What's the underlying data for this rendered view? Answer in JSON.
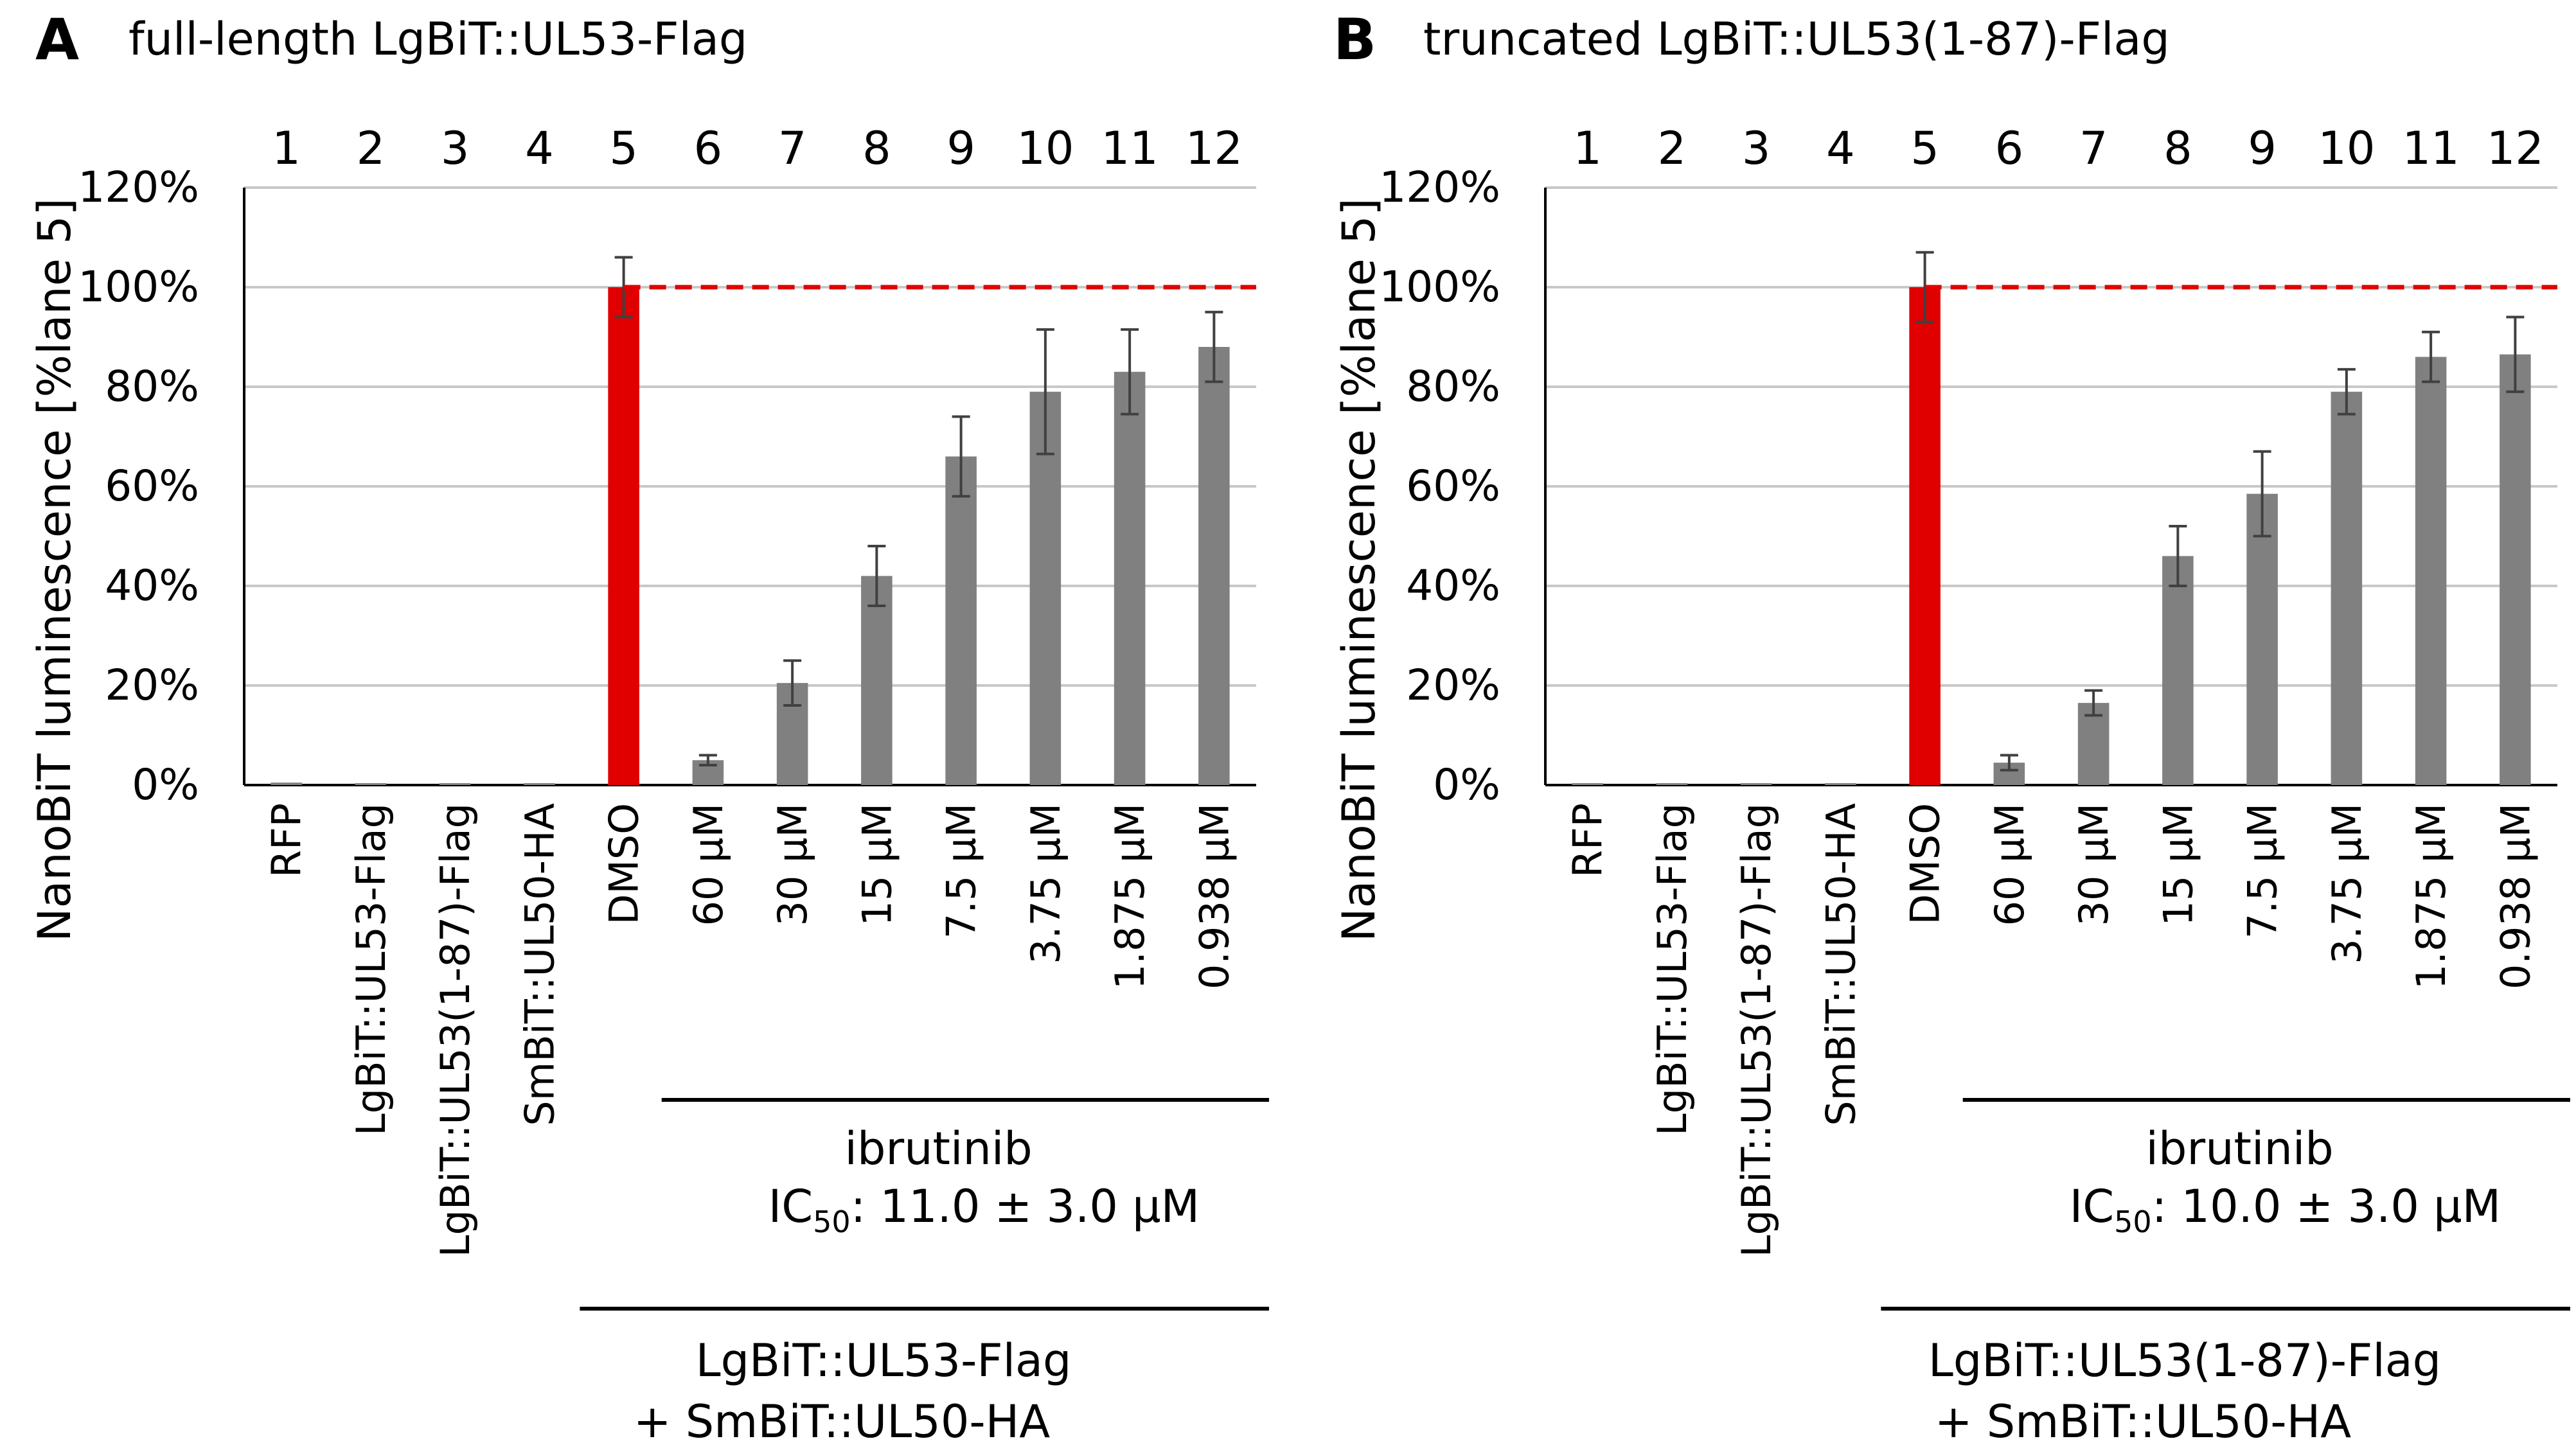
{
  "chart_data": [
    {
      "type": "bar",
      "panel": "A",
      "title": "full-length LgBiT::UL53-Flag",
      "ylabel": "NanoBiT luminescence [%lane 5]",
      "lane_numbers": [
        "1",
        "2",
        "3",
        "4",
        "5",
        "6",
        "7",
        "8",
        "9",
        "10",
        "11",
        "12"
      ],
      "categories": [
        "RFP",
        "LgBiT::UL53-Flag",
        "LgBiT::UL53(1-87)-Flag",
        "SmBiT::UL50-HA",
        "DMSO",
        "60 µM",
        "30 µM",
        "15 µM",
        "7.5 µM",
        "3.75 µM",
        "1.875 µM",
        "0.938 µM"
      ],
      "values": [
        0.5,
        0,
        0,
        0,
        100,
        5,
        20.5,
        42,
        66,
        79,
        83,
        88
      ],
      "errors": [
        0,
        0,
        0,
        0,
        6,
        1,
        4.5,
        6,
        8,
        12.5,
        8.5,
        7
      ],
      "highlight_index": 4,
      "ylim": [
        0,
        120
      ],
      "yticks": [
        "0%",
        "20%",
        "40%",
        "60%",
        "80%",
        "100%",
        "120%"
      ],
      "ytick_values": [
        0,
        20,
        40,
        60,
        80,
        100,
        120
      ],
      "reference_line": 100,
      "grid": true,
      "inner_group": {
        "label": "ibrutinib",
        "ic50_prefix": "IC",
        "ic50_sub": "50",
        "ic50_text": ": 11.0 ± 3.0 µM",
        "from_index": 5,
        "to_index": 11
      },
      "outer_group": {
        "line1": "LgBiT::UL53-Flag",
        "line2": "+ SmBiT::UL50-HA",
        "from_index": 4,
        "to_index": 11
      }
    },
    {
      "type": "bar",
      "panel": "B",
      "title": "truncated LgBiT::UL53(1-87)-Flag",
      "ylabel": "NanoBiT luminescence [%lane 5]",
      "lane_numbers": [
        "1",
        "2",
        "3",
        "4",
        "5",
        "6",
        "7",
        "8",
        "9",
        "10",
        "11",
        "12"
      ],
      "categories": [
        "RFP",
        "LgBiT::UL53-Flag",
        "LgBiT::UL53(1-87)-Flag",
        "SmBiT::UL50-HA",
        "DMSO",
        "60 µM",
        "30 µM",
        "15 µM",
        "7.5 µM",
        "3.75 µM",
        "1.875 µM",
        "0.938 µM"
      ],
      "values": [
        0,
        0,
        0,
        0,
        100,
        4.5,
        16.5,
        46,
        58.5,
        79,
        86,
        86.5
      ],
      "errors": [
        0,
        0,
        0,
        0,
        7,
        1.5,
        2.5,
        6,
        8.5,
        4.5,
        5,
        7.5
      ],
      "highlight_index": 4,
      "ylim": [
        0,
        120
      ],
      "yticks": [
        "0%",
        "20%",
        "40%",
        "60%",
        "80%",
        "100%",
        "120%"
      ],
      "ytick_values": [
        0,
        20,
        40,
        60,
        80,
        100,
        120
      ],
      "reference_line": 100,
      "grid": true,
      "inner_group": {
        "label": "ibrutinib",
        "ic50_prefix": "IC",
        "ic50_sub": "50",
        "ic50_text": ": 10.0 ± 3.0 µM",
        "from_index": 5,
        "to_index": 11
      },
      "outer_group": {
        "line1": "LgBiT::UL53(1-87)-Flag",
        "line2": "+ SmBiT::UL50-HA",
        "from_index": 4,
        "to_index": 11
      }
    }
  ],
  "colors": {
    "bar": "#808080",
    "highlight": "#e00000",
    "reference_line": "#e00000",
    "grid": "#c8c8c8",
    "axis": "#000000",
    "error_bar": "#404040"
  }
}
